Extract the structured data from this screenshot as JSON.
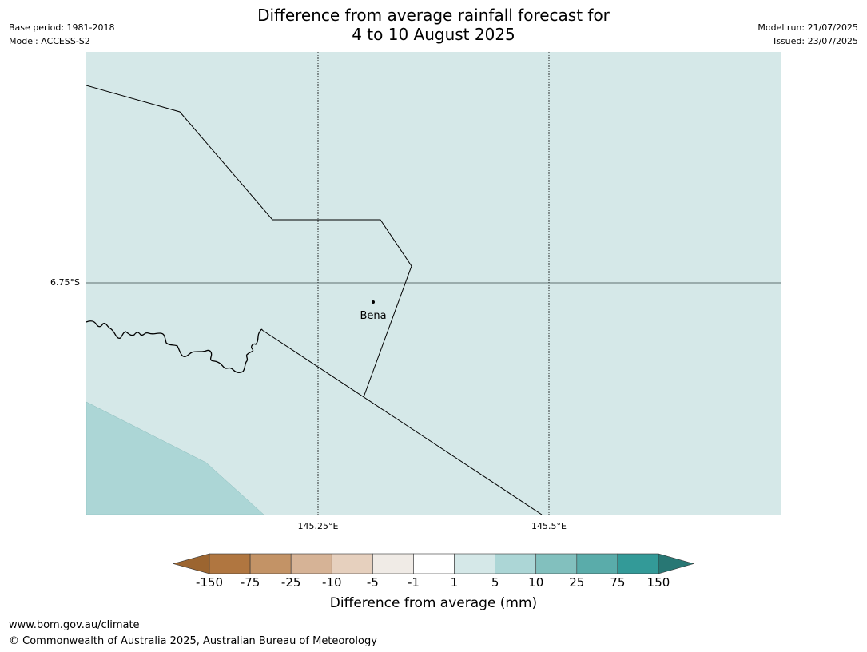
{
  "title_line1": "Difference from average rainfall forecast for",
  "title_line2": "4 to 10 August 2025",
  "meta": {
    "base_period": "Base period: 1981-2018",
    "model": "Model: ACCESS-S2",
    "model_run": "Model run: 21/07/2025",
    "issued": "Issued: 23/07/2025"
  },
  "map": {
    "lat_label": "6.75°S",
    "lon_labels": [
      "145.25°E",
      "145.5°E"
    ],
    "town": "Bena",
    "colors": {
      "background": "#d5e8e8",
      "wetter_area": "#acd6d6"
    }
  },
  "colorbar": {
    "ticks": [
      "-150",
      "-75",
      "-25",
      "-10",
      "-5",
      "-1",
      "1",
      "5",
      "10",
      "25",
      "75",
      "150"
    ],
    "colors": [
      "#9c6530",
      "#b07640",
      "#c39366",
      "#d6b396",
      "#e6d0be",
      "#f0ebe6",
      "#ffffff",
      "#d5e8e8",
      "#acd6d6",
      "#82c0be",
      "#5aacaa",
      "#339a98",
      "#287774"
    ],
    "label": "Difference from average (mm)"
  },
  "footer": {
    "url": "www.bom.gov.au/climate",
    "copyright": "© Commonwealth of Australia 2025, Australian Bureau of Meteorology"
  }
}
